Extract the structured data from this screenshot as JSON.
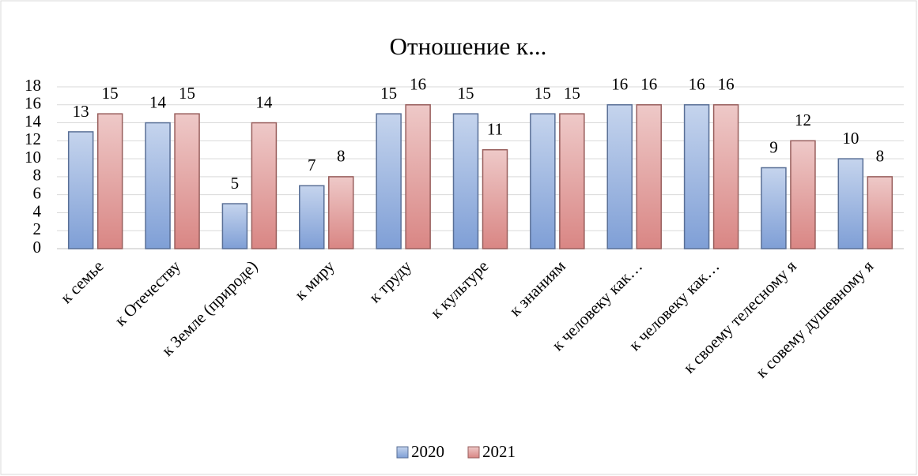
{
  "chart_data": {
    "type": "bar",
    "title": "Отношение к...",
    "categories": [
      "к семье",
      "к Отечеству",
      "к Земле (природе)",
      "к миру",
      "к труду",
      "к культуре",
      "к знаниям",
      "к человеку как…",
      "к человеку как…",
      "к своему телесному я",
      "к совему душевному я"
    ],
    "series": [
      {
        "name": "2020",
        "color": "#7f9fd6",
        "values": [
          13,
          14,
          5,
          7,
          15,
          15,
          15,
          16,
          16,
          9,
          10
        ]
      },
      {
        "name": "2021",
        "color": "#d98684",
        "values": [
          15,
          15,
          14,
          8,
          16,
          11,
          15,
          16,
          16,
          12,
          8
        ]
      }
    ],
    "ylim": [
      0,
      18
    ],
    "yticks": [
      0,
      2,
      4,
      6,
      8,
      10,
      12,
      14,
      16,
      18
    ],
    "grid": true,
    "legend": "bottom"
  }
}
